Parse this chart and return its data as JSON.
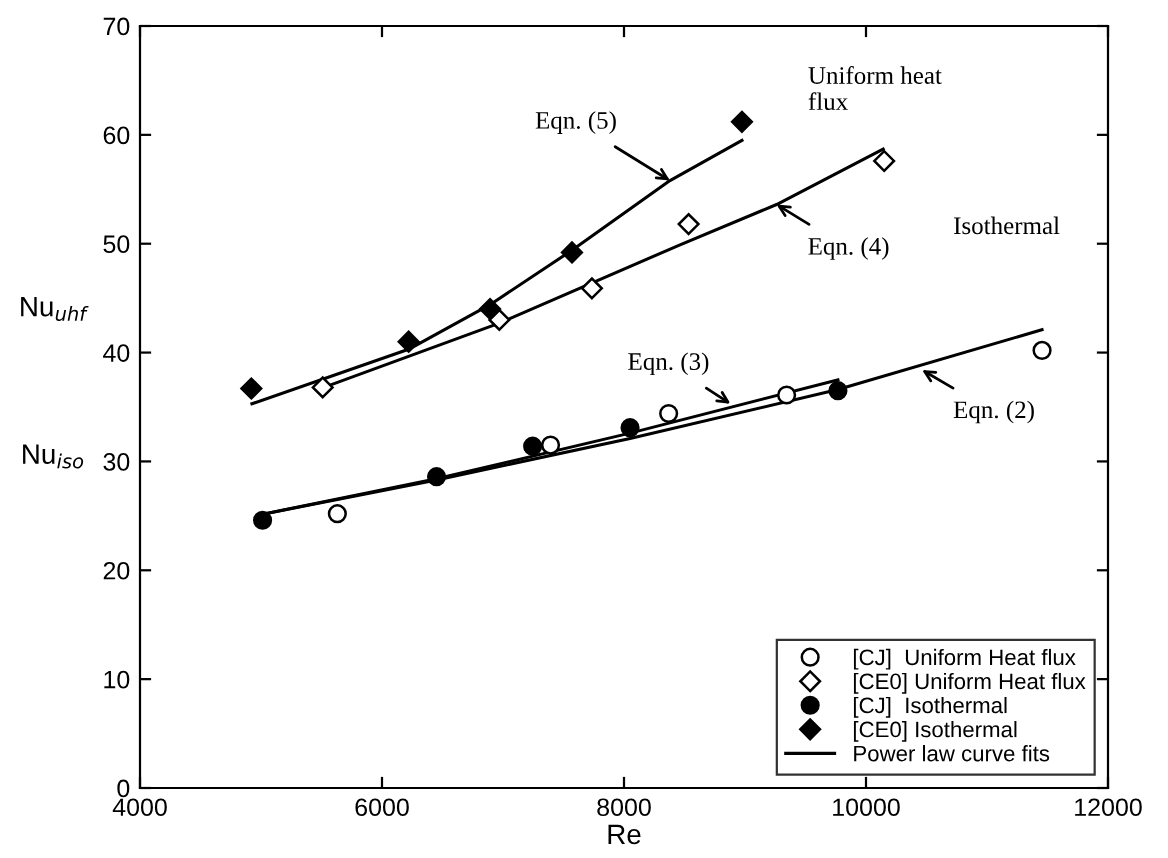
{
  "chart_data": {
    "type": "scatter",
    "xlabel": "Re",
    "ylabel": "Nu$_{uhf}$",
    "xlim": [
      4000,
      12000
    ],
    "xticks": [
      4000,
      6000,
      8000,
      10000,
      12000
    ],
    "ylim": [
      0,
      70
    ],
    "yticks": [
      0,
      10,
      20,
      30,
      40,
      50,
      60,
      70
    ],
    "grid": false,
    "legend": "bottom right",
    "series": [
      {
        "name": "[CJ]  Uniform Heat flux",
        "marker": "circle",
        "color": "#ffffff",
        "x": [
          5631,
          7393,
          8369,
          9344,
          11455
        ],
        "values": [
          25.2,
          31.5,
          34.4,
          36.1,
          40.2
        ]
      },
      {
        "name": "[CE0] Uniform Heat flux",
        "marker": "diamond",
        "color": "#ffffff",
        "x": [
          5510,
          6970,
          7735,
          8534,
          10150
        ],
        "values": [
          36.8,
          43.0,
          45.9,
          51.8,
          57.6
        ]
      },
      {
        "name": "[CJ]  Isothermal",
        "marker": "circle",
        "color": "#000000",
        "x": [
          5013,
          6451,
          7245,
          8050,
          9768
        ],
        "values": [
          24.6,
          28.6,
          31.4,
          33.1,
          36.5
        ]
      },
      {
        "name": "[CE0] Isothermal",
        "marker": "diamond",
        "color": "#000000",
        "x": [
          4920,
          6220,
          6893,
          7570,
          8975
        ],
        "values": [
          36.7,
          41.0,
          44.0,
          49.2,
          61.2
        ]
      },
      {
        "name": "Power law curve fits",
        "type": "line",
        "marker": "none",
        "line_style": "solid",
        "color": "#000000",
        "x": [
          4925,
          6220,
          6893,
          7570,
          8380,
          8975
        ],
        "values": [
          35.3,
          40.3,
          44.4,
          49.4,
          55.8,
          59.5
        ]
      },
      {
        "type": "line",
        "marker": "none",
        "line_style": "solid",
        "color": "#000000",
        "x": [
          5520,
          6970,
          8463,
          9261,
          10142
        ],
        "values": [
          36.8,
          42.7,
          49.9,
          53.6,
          58.7
        ]
      },
      {
        "type": "line",
        "marker": "none",
        "line_style": "solid",
        "color": "#000000",
        "x": [
          5036,
          6451,
          8050,
          9768
        ],
        "values": [
          25.2,
          28.4,
          32.6,
          37.5
        ]
      },
      {
        "type": "line",
        "marker": "none",
        "line_style": "solid",
        "color": "#000000",
        "x": [
          5036,
          6451,
          8050,
          9768,
          11455
        ],
        "values": [
          25.2,
          28.3,
          32.1,
          36.6,
          42.1
        ]
      }
    ],
    "annotations": [
      {
        "text": "Eqn. (5)",
        "x": 8380,
        "y": 55.8
      },
      {
        "text": "Eqn. (4)",
        "x": 9261,
        "y": 53.6
      },
      {
        "text": "Eqn. (3)",
        "x": 8880,
        "y": 35.3
      },
      {
        "text": "Eqn. (2)",
        "x": 10463,
        "y": 38.4
      },
      "Uniform heat\nflux",
      "Isothermal",
      "Nu$_{iso}$"
    ]
  }
}
